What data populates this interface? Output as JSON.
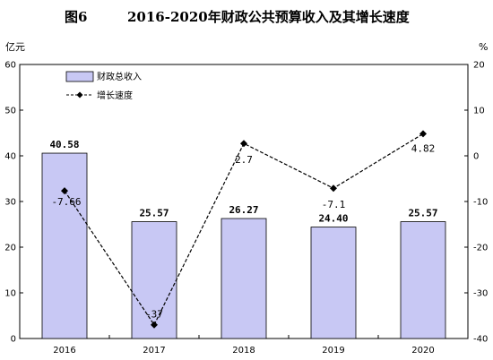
{
  "figure": {
    "label": "图6",
    "title": "2016-2020年财政公共预算收入及其增长速度"
  },
  "colors": {
    "bar_fill": "#c8c8f4",
    "bar_stroke": "#000000",
    "line": "#000000"
  },
  "chart_data": {
    "type": "bar",
    "categories": [
      "2016",
      "2017",
      "2018",
      "2019",
      "2020"
    ],
    "series": [
      {
        "name": "财政总收入",
        "type": "bar",
        "axis": "left",
        "values": [
          40.58,
          25.57,
          26.27,
          24.4,
          25.57
        ],
        "labels": [
          "40.58",
          "25.57",
          "26.27",
          "24.40",
          "25.57"
        ]
      },
      {
        "name": "增长速度",
        "type": "line",
        "axis": "right",
        "values": [
          -7.66,
          -37,
          2.7,
          -7.1,
          4.82
        ],
        "labels": [
          "-7.66",
          "-37",
          "2.7",
          "-7.1",
          "4.82"
        ]
      }
    ],
    "y_left": {
      "label": "亿元",
      "lim": [
        0,
        60
      ],
      "ticks": [
        "0",
        "10",
        "20",
        "30",
        "40",
        "50",
        "60"
      ]
    },
    "y_right": {
      "label": "%",
      "lim": [
        -40,
        20
      ],
      "ticks": [
        "-40",
        "-30",
        "-20",
        "-10",
        "0",
        "10",
        "20"
      ]
    },
    "legend": "top-left",
    "grid": false
  }
}
